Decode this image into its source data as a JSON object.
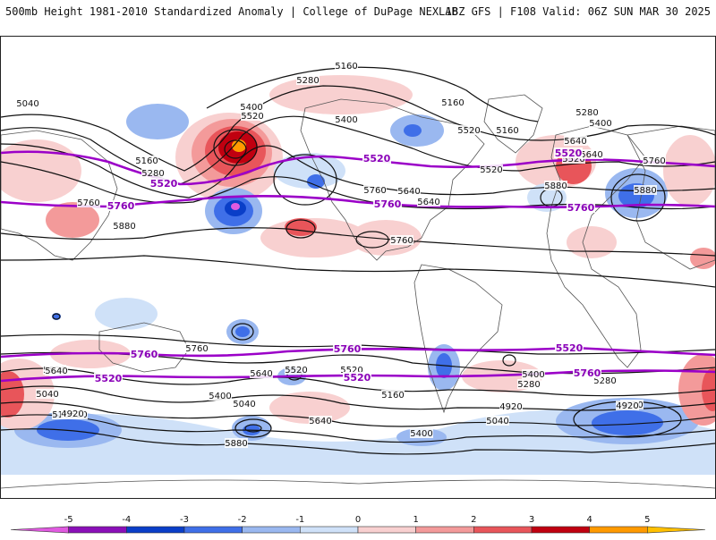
{
  "header": {
    "title": "500mb Height 1981-2010 Standardized Anomaly | College of DuPage NEXLAB",
    "run_info": "18Z GFS | F108 Valid: 06Z SUN MAR 30 2025"
  },
  "colorbar": {
    "ticks": [
      "-5",
      "-4",
      "-3",
      "-2",
      "-1",
      "0",
      "1",
      "2",
      "3",
      "4",
      "5"
    ],
    "colors": [
      "#e05ae0",
      "#8a0fb8",
      "#0a3ec8",
      "#3f6fe8",
      "#9ab8f0",
      "#cfe1f8",
      "#f8d0d0",
      "#f39a9a",
      "#e8555a",
      "#c00010",
      "#ff9a00",
      "#ffc000"
    ]
  },
  "map": {
    "anomaly_colors": {
      "neg1": "#cfe1f8",
      "neg2": "#9ab8f0",
      "neg3": "#3f6fe8",
      "neg4": "#0a3ec8",
      "neg5": "#8a0fb8",
      "neg6": "#e05ae0",
      "pos1": "#f8d0d0",
      "pos2": "#f39a9a",
      "pos3": "#e8555a",
      "pos4": "#c00010",
      "pos5": "#ff9a00",
      "pos6": "#ffc000"
    },
    "highlight_color": "#9b00c8",
    "contour_labels": [
      "5160",
      "5280",
      "5040",
      "5400",
      "5520",
      "5160",
      "5520",
      "5400",
      "5160",
      "5280",
      "5400",
      "5640",
      "5520",
      "5160",
      "5280",
      "5640",
      "5760",
      "5880",
      "5640",
      "5760",
      "5520",
      "5880",
      "5760",
      "5880",
      "5640",
      "5760",
      "5520",
      "5640",
      "5760",
      "5520",
      "5640",
      "5520",
      "5400",
      "5280",
      "5040",
      "5400",
      "5160",
      "5280",
      "5040",
      "4920",
      "5640",
      "5400",
      "5160",
      "5520",
      "5040",
      "4920",
      "4920",
      "5880",
      "5760",
      "5640",
      "5520",
      "5280",
      "5160",
      "5040",
      "5400",
      "4920"
    ],
    "highlight_labels": [
      "5520",
      "5520",
      "5520",
      "5760",
      "5760",
      "5760",
      "5760",
      "5760",
      "5520",
      "5520",
      "5520",
      "5760"
    ]
  }
}
